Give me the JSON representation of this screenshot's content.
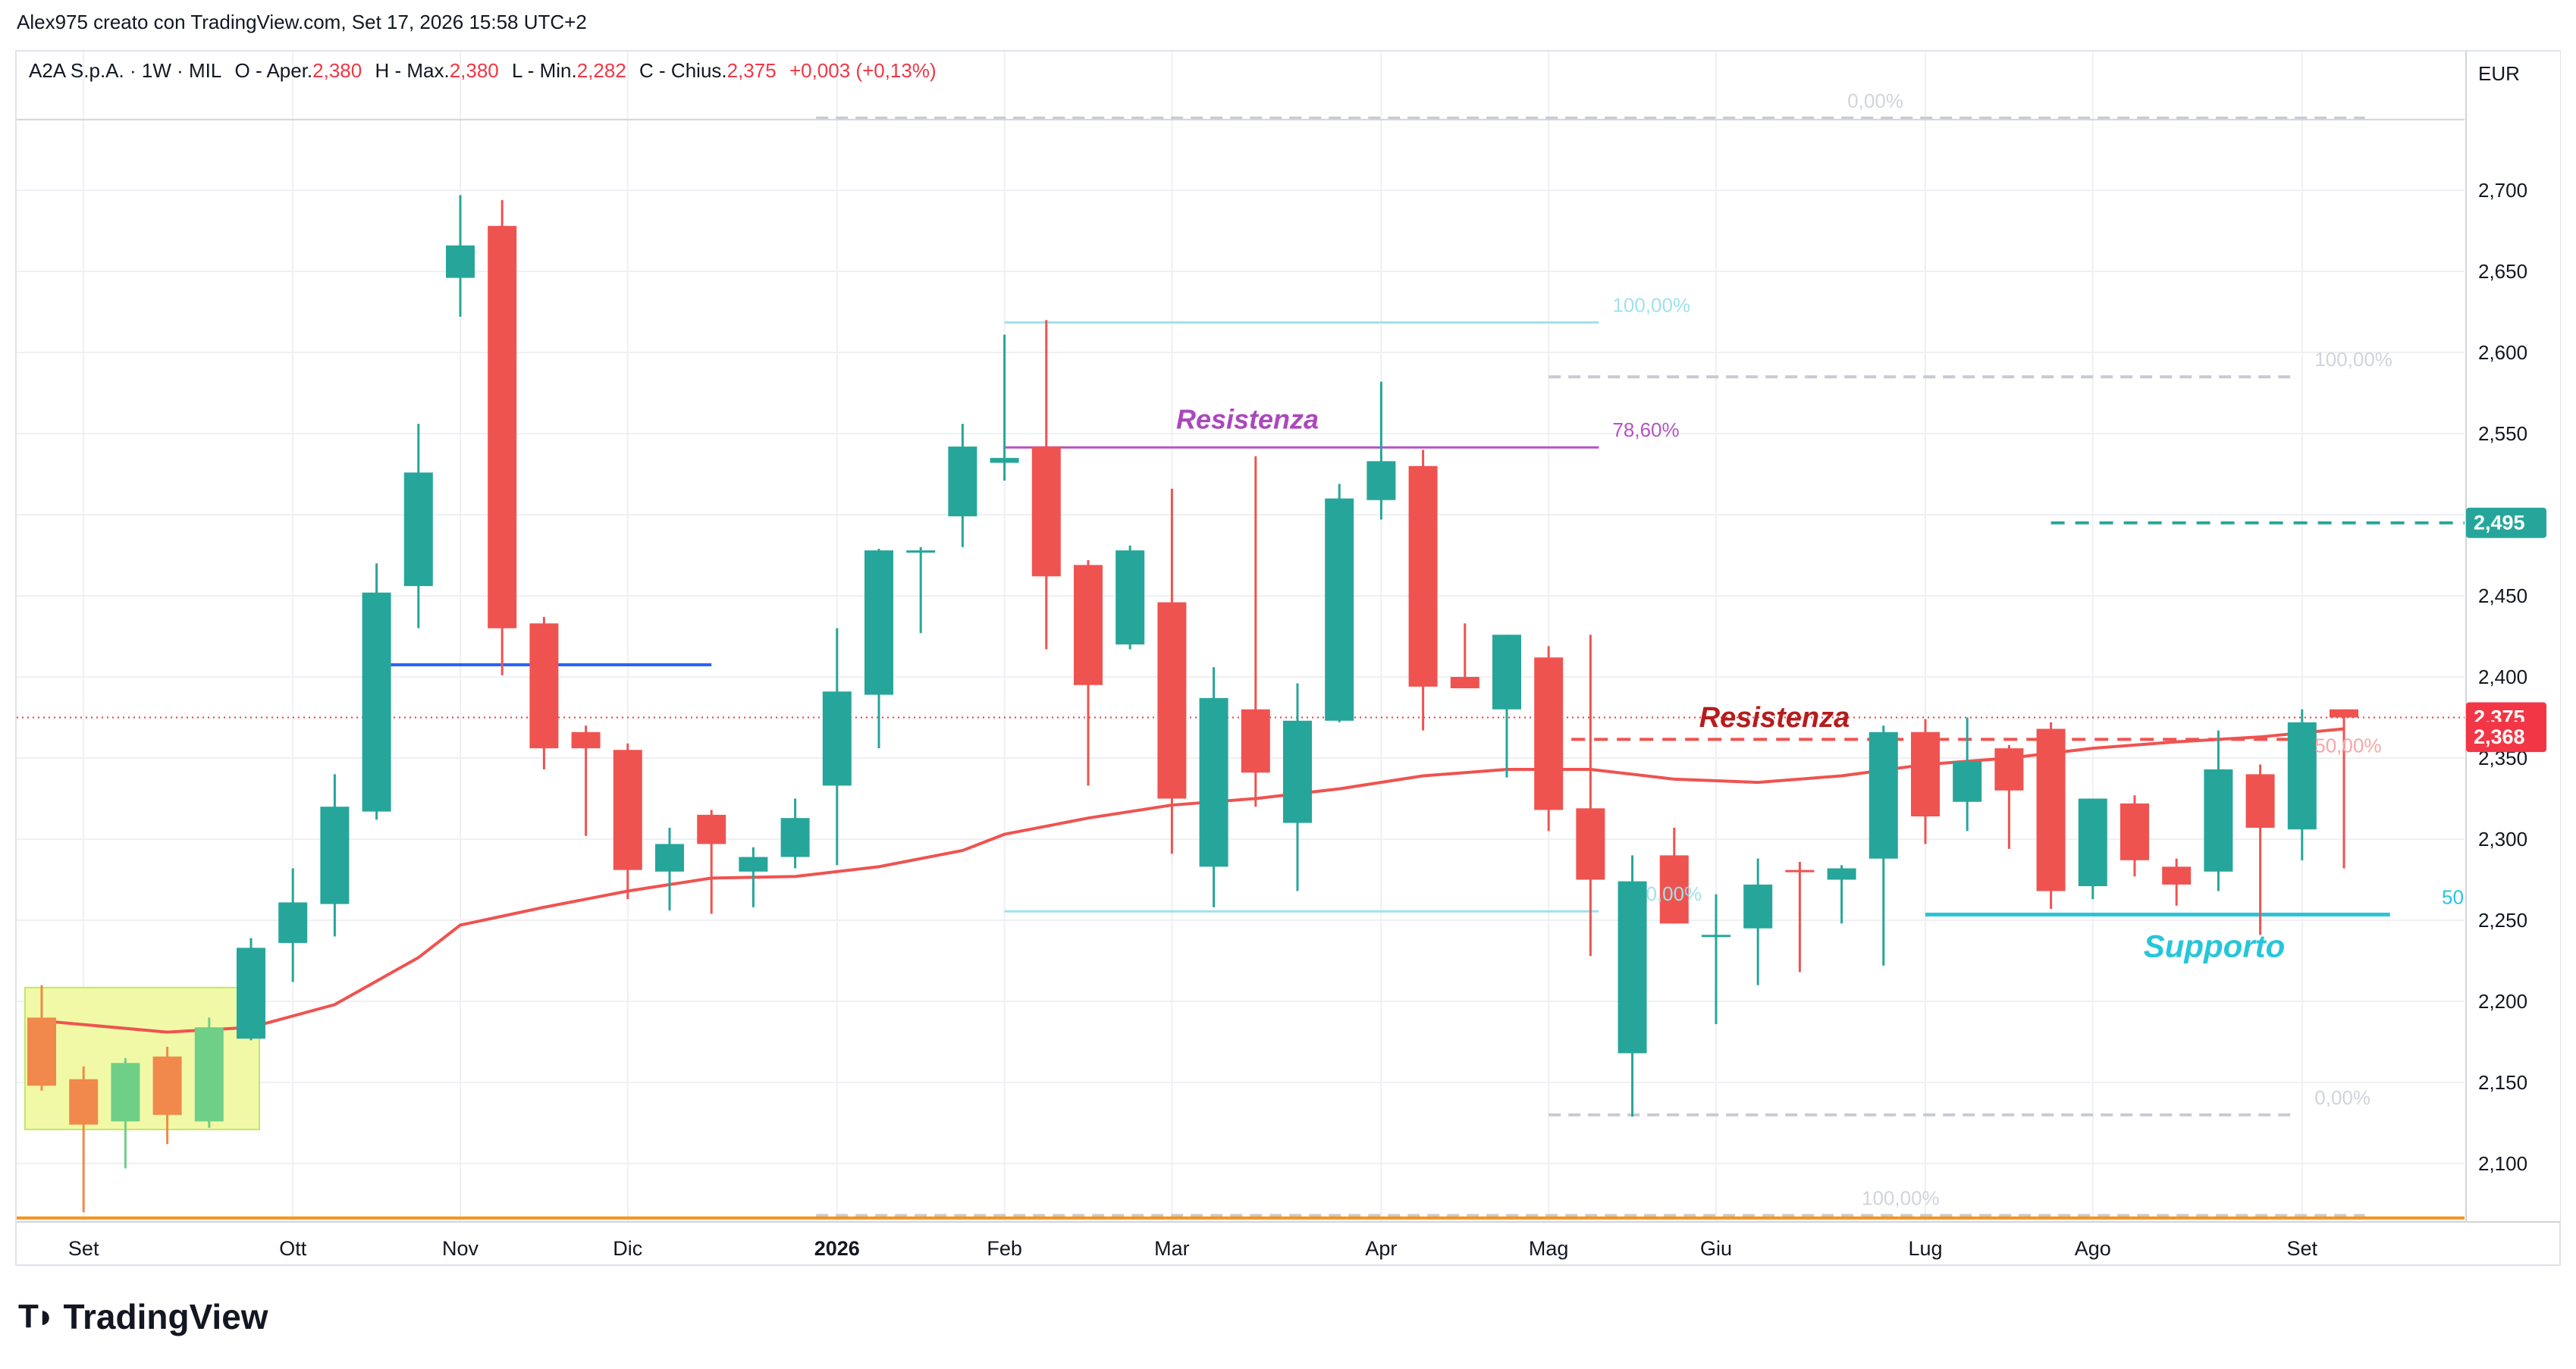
{
  "header": {
    "created_by": "Alex975 creato con TradingView.com, Set 17, 2026 15:58 UTC+2"
  },
  "legend": {
    "symbol": "A2A S.p.A. · 1W · MIL",
    "open_label": "O - Aper.",
    "open": "2,380",
    "high_label": "H - Max.",
    "high": "2,380",
    "low_label": "L - Min.",
    "low": "2,282",
    "close_label": "C - Chius.",
    "close": "2,375",
    "change": "+0,003 (+0,13%)"
  },
  "brand": {
    "logo_text": "TradingView"
  },
  "colors": {
    "up": "#26a69a",
    "down": "#ef5350",
    "ma": "#ef5350",
    "fib_cyan": "#9ee2ec",
    "fib_gray": "#c8cbd3",
    "fib_violet": "#b553c6",
    "resist_violet": "#ab47bc",
    "resist_red": "#b71c1c",
    "support": "#26c6da",
    "trendline_blue": "#2962ff",
    "target_green": "#26a69a",
    "orange": "#f7931a",
    "yellow_box": "#f1f9a7",
    "orange_candle": "#f0894b",
    "green_candle": "#6fcf86"
  },
  "chart_data": {
    "type": "candlestick",
    "timeframe": "1W",
    "currency": "EUR",
    "ylim": [
      2.065,
      2.75
    ],
    "y_ticks": [
      {
        "value": 2.7,
        "label": "2,700"
      },
      {
        "value": 2.65,
        "label": "2,650"
      },
      {
        "value": 2.6,
        "label": "2,600"
      },
      {
        "value": 2.55,
        "label": "2,550"
      },
      {
        "value": 2.45,
        "label": "2,450"
      },
      {
        "value": 2.4,
        "label": "2,400"
      },
      {
        "value": 2.35,
        "label": "2,350"
      },
      {
        "value": 2.3,
        "label": "2,300"
      },
      {
        "value": 2.25,
        "label": "2,250"
      },
      {
        "value": 2.2,
        "label": "2,200"
      },
      {
        "value": 2.15,
        "label": "2,150"
      },
      {
        "value": 2.1,
        "label": "2,100"
      }
    ],
    "x_ticks": [
      {
        "week": 1,
        "label": "Set",
        "bold": false
      },
      {
        "week": 6,
        "label": "Ott",
        "bold": false
      },
      {
        "week": 10,
        "label": "Nov",
        "bold": false
      },
      {
        "week": 14,
        "label": "Dic",
        "bold": false
      },
      {
        "week": 19,
        "label": "2026",
        "bold": true
      },
      {
        "week": 23,
        "label": "Feb",
        "bold": false
      },
      {
        "week": 27,
        "label": "Mar",
        "bold": false
      },
      {
        "week": 32,
        "label": "Apr",
        "bold": false
      },
      {
        "week": 36,
        "label": "Mag",
        "bold": false
      },
      {
        "week": 40,
        "label": "Giu",
        "bold": false
      },
      {
        "week": 45,
        "label": "Lug",
        "bold": false
      },
      {
        "week": 49,
        "label": "Ago",
        "bold": false
      },
      {
        "week": 54,
        "label": "Set",
        "bold": false
      }
    ],
    "candles": [
      {
        "w": 0,
        "o": 2.19,
        "h": 2.21,
        "l": 2.145,
        "c": 2.148,
        "style": "orange"
      },
      {
        "w": 1,
        "o": 2.152,
        "h": 2.16,
        "l": 2.07,
        "c": 2.124,
        "style": "orange"
      },
      {
        "w": 2,
        "o": 2.126,
        "h": 2.165,
        "l": 2.097,
        "c": 2.162,
        "style": "green"
      },
      {
        "w": 3,
        "o": 2.13,
        "h": 2.172,
        "l": 2.112,
        "c": 2.166,
        "style": "orange"
      },
      {
        "w": 4,
        "o": 2.126,
        "h": 2.19,
        "l": 2.122,
        "c": 2.184,
        "style": "green"
      },
      {
        "w": 5,
        "o": 2.177,
        "h": 2.239,
        "l": 2.176,
        "c": 2.233
      },
      {
        "w": 6,
        "o": 2.236,
        "h": 2.282,
        "l": 2.212,
        "c": 2.261
      },
      {
        "w": 7,
        "o": 2.26,
        "h": 2.34,
        "l": 2.24,
        "c": 2.32
      },
      {
        "w": 8,
        "o": 2.317,
        "h": 2.47,
        "l": 2.312,
        "c": 2.452
      },
      {
        "w": 9,
        "o": 2.456,
        "h": 2.556,
        "l": 2.43,
        "c": 2.526
      },
      {
        "w": 10,
        "o": 2.646,
        "h": 2.697,
        "l": 2.622,
        "c": 2.666
      },
      {
        "w": 11,
        "o": 2.678,
        "h": 2.694,
        "l": 2.401,
        "c": 2.43
      },
      {
        "w": 12,
        "o": 2.433,
        "h": 2.437,
        "l": 2.343,
        "c": 2.356
      },
      {
        "w": 13,
        "o": 2.366,
        "h": 2.37,
        "l": 2.302,
        "c": 2.356
      },
      {
        "w": 14,
        "o": 2.355,
        "h": 2.359,
        "l": 2.263,
        "c": 2.281
      },
      {
        "w": 15,
        "o": 2.28,
        "h": 2.307,
        "l": 2.256,
        "c": 2.297
      },
      {
        "w": 16,
        "o": 2.315,
        "h": 2.318,
        "l": 2.254,
        "c": 2.297
      },
      {
        "w": 17,
        "o": 2.28,
        "h": 2.295,
        "l": 2.258,
        "c": 2.289
      },
      {
        "w": 18,
        "o": 2.289,
        "h": 2.325,
        "l": 2.282,
        "c": 2.313
      },
      {
        "w": 19,
        "o": 2.333,
        "h": 2.43,
        "l": 2.284,
        "c": 2.391
      },
      {
        "w": 20,
        "o": 2.389,
        "h": 2.479,
        "l": 2.356,
        "c": 2.478
      },
      {
        "w": 21,
        "o": 2.478,
        "h": 2.48,
        "l": 2.427,
        "c": 2.478
      },
      {
        "w": 22,
        "o": 2.499,
        "h": 2.556,
        "l": 2.48,
        "c": 2.542
      },
      {
        "w": 23,
        "o": 2.532,
        "h": 2.611,
        "l": 2.521,
        "c": 2.535
      },
      {
        "w": 24,
        "o": 2.542,
        "h": 2.62,
        "l": 2.417,
        "c": 2.462
      },
      {
        "w": 25,
        "o": 2.469,
        "h": 2.472,
        "l": 2.333,
        "c": 2.395
      },
      {
        "w": 26,
        "o": 2.42,
        "h": 2.481,
        "l": 2.417,
        "c": 2.478
      },
      {
        "w": 27,
        "o": 2.446,
        "h": 2.516,
        "l": 2.291,
        "c": 2.325
      },
      {
        "w": 28,
        "o": 2.283,
        "h": 2.406,
        "l": 2.258,
        "c": 2.387
      },
      {
        "w": 29,
        "o": 2.38,
        "h": 2.536,
        "l": 2.32,
        "c": 2.341
      },
      {
        "w": 30,
        "o": 2.31,
        "h": 2.396,
        "l": 2.268,
        "c": 2.373
      },
      {
        "w": 31,
        "o": 2.373,
        "h": 2.519,
        "l": 2.372,
        "c": 2.51
      },
      {
        "w": 32,
        "o": 2.509,
        "h": 2.582,
        "l": 2.497,
        "c": 2.533
      },
      {
        "w": 33,
        "o": 2.53,
        "h": 2.54,
        "l": 2.367,
        "c": 2.394
      },
      {
        "w": 34,
        "o": 2.4,
        "h": 2.433,
        "l": 2.393,
        "c": 2.393
      },
      {
        "w": 35,
        "o": 2.38,
        "h": 2.426,
        "l": 2.338,
        "c": 2.426
      },
      {
        "w": 36,
        "o": 2.412,
        "h": 2.419,
        "l": 2.305,
        "c": 2.318
      },
      {
        "w": 37,
        "o": 2.319,
        "h": 2.426,
        "l": 2.228,
        "c": 2.275
      },
      {
        "w": 38,
        "o": 2.168,
        "h": 2.29,
        "l": 2.129,
        "c": 2.274
      },
      {
        "w": 39,
        "o": 2.29,
        "h": 2.307,
        "l": 2.248,
        "c": 2.248
      },
      {
        "w": 40,
        "o": 2.24,
        "h": 2.266,
        "l": 2.186,
        "c": 2.241
      },
      {
        "w": 41,
        "o": 2.245,
        "h": 2.288,
        "l": 2.21,
        "c": 2.272
      },
      {
        "w": 42,
        "o": 2.281,
        "h": 2.286,
        "l": 2.218,
        "c": 2.28
      },
      {
        "w": 43,
        "o": 2.275,
        "h": 2.284,
        "l": 2.248,
        "c": 2.282
      },
      {
        "w": 44,
        "o": 2.288,
        "h": 2.37,
        "l": 2.222,
        "c": 2.366
      },
      {
        "w": 45,
        "o": 2.366,
        "h": 2.374,
        "l": 2.297,
        "c": 2.314
      },
      {
        "w": 46,
        "o": 2.323,
        "h": 2.375,
        "l": 2.305,
        "c": 2.348
      },
      {
        "w": 47,
        "o": 2.356,
        "h": 2.358,
        "l": 2.294,
        "c": 2.33
      },
      {
        "w": 48,
        "o": 2.368,
        "h": 2.372,
        "l": 2.257,
        "c": 2.268
      },
      {
        "w": 49,
        "o": 2.271,
        "h": 2.322,
        "l": 2.263,
        "c": 2.325
      },
      {
        "w": 50,
        "o": 2.322,
        "h": 2.327,
        "l": 2.277,
        "c": 2.287
      },
      {
        "w": 51,
        "o": 2.283,
        "h": 2.288,
        "l": 2.259,
        "c": 2.272
      },
      {
        "w": 52,
        "o": 2.28,
        "h": 2.367,
        "l": 2.268,
        "c": 2.343
      },
      {
        "w": 53,
        "o": 2.34,
        "h": 2.346,
        "l": 2.241,
        "c": 2.307
      },
      {
        "w": 54,
        "o": 2.306,
        "h": 2.38,
        "l": 2.287,
        "c": 2.372
      },
      {
        "w": 55,
        "o": 2.38,
        "h": 2.38,
        "l": 2.282,
        "c": 2.375
      }
    ],
    "moving_average": [
      [
        0,
        2.188
      ],
      [
        3,
        2.181
      ],
      [
        5,
        2.184
      ],
      [
        7,
        2.198
      ],
      [
        9,
        2.227
      ],
      [
        10,
        2.247
      ],
      [
        12,
        2.258
      ],
      [
        14,
        2.268
      ],
      [
        16,
        2.276
      ],
      [
        18,
        2.277
      ],
      [
        20,
        2.283
      ],
      [
        22,
        2.293
      ],
      [
        23,
        2.303
      ],
      [
        25,
        2.313
      ],
      [
        27,
        2.321
      ],
      [
        29,
        2.325
      ],
      [
        31,
        2.331
      ],
      [
        33,
        2.339
      ],
      [
        35,
        2.343
      ],
      [
        37,
        2.343
      ],
      [
        39,
        2.337
      ],
      [
        41,
        2.335
      ],
      [
        43,
        2.339
      ],
      [
        45,
        2.346
      ],
      [
        47,
        2.35
      ],
      [
        49,
        2.356
      ],
      [
        51,
        2.36
      ],
      [
        53,
        2.363
      ],
      [
        55,
        2.368
      ]
    ],
    "price_labels": [
      {
        "value": 2.495,
        "label": "2,495",
        "color": "#26a69a"
      },
      {
        "value": 2.375,
        "label": "2,375",
        "color": "#f23645"
      },
      {
        "value": 2.363,
        "label": "2,368",
        "color": "#f23645"
      }
    ],
    "current_price": 2.375,
    "annotations": {
      "fib_top_left": {
        "w1": 18.5,
        "w2": 55.5,
        "top": 2.7445,
        "bottom": 2.068,
        "top_label": "0,00%",
        "bottom_label": "100,00%"
      },
      "fib_mid": {
        "w1": 23,
        "w2": 37.2,
        "top": 2.6185,
        "mid": 2.5415,
        "bottom": 2.2555,
        "top_label": "100,00%",
        "mid_label": "78,60%",
        "bottom_label": "0,00%"
      },
      "fib_right": {
        "w1": 36,
        "w2": 53.9,
        "top": 2.585,
        "mid": 2.359,
        "bottom": 2.13,
        "top_label": "100,00%",
        "mid_label": "50,00%",
        "bottom_label": "0,00%"
      },
      "resistance_1": {
        "w1": 23,
        "w2": 37.2,
        "value": 2.541,
        "label": "Resistenza"
      },
      "resistance_2": {
        "w1": 36,
        "w2": 54,
        "value": 2.3615,
        "label": "Resistenza"
      },
      "support": {
        "w1": 45,
        "w2": 56.1,
        "value": 2.2535,
        "label": "Supporto",
        "edge_label": "50"
      },
      "blue_line": {
        "w1": 7.8,
        "w2": 16,
        "value": 2.4075
      },
      "target_line": {
        "w1": 48,
        "w2": 58,
        "value": 2.495
      },
      "orange_line": {
        "w1": -1,
        "w2": 58,
        "value": 2.0665
      },
      "highlight_box": {
        "w1": -0.4,
        "w2": 5.2,
        "top": 2.2085,
        "bottom": 2.121
      }
    }
  }
}
